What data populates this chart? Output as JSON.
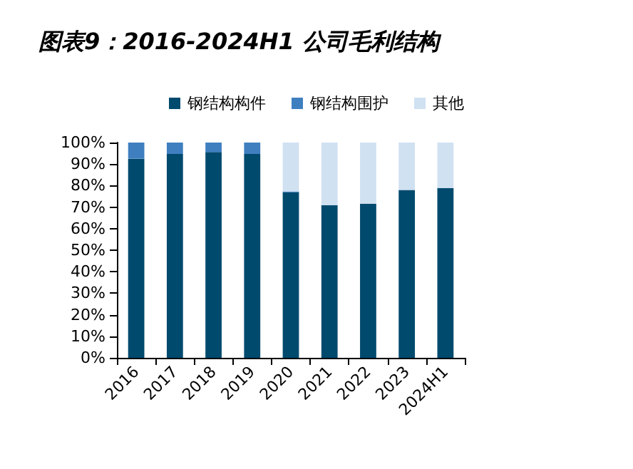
{
  "chart_data": {
    "type": "bar",
    "title": "图表9：2016-2024H1 公司毛利结构",
    "stacked": true,
    "legend": "top",
    "grid": false,
    "categories": [
      "2016",
      "2017",
      "2018",
      "2019",
      "2020",
      "2021",
      "2022",
      "2023",
      "2024H1"
    ],
    "series": [
      {
        "name": "钢结构构件",
        "color": "#004a6e",
        "values": [
          92.5,
          94.7,
          95.6,
          94.7,
          76.9,
          70.9,
          71.6,
          78.0,
          78.9
        ]
      },
      {
        "name": "钢结构围护",
        "color": "#3f7fc0",
        "values": [
          7.5,
          5.3,
          4.4,
          5.3,
          0.4,
          0,
          0,
          0,
          0
        ]
      },
      {
        "name": "其他",
        "color": "#d0e1f2",
        "values": [
          0,
          0,
          0,
          0,
          22.7,
          29.1,
          28.4,
          22.0,
          21.1
        ]
      }
    ],
    "ylim": [
      0,
      100
    ],
    "yticks": [
      {
        "value": 0,
        "label": "0%"
      },
      {
        "value": 10,
        "label": "10%"
      },
      {
        "value": 20,
        "label": "20%"
      },
      {
        "value": 30,
        "label": "30%"
      },
      {
        "value": 40,
        "label": "40%"
      },
      {
        "value": 50,
        "label": "50%"
      },
      {
        "value": 60,
        "label": "60%"
      },
      {
        "value": 70,
        "label": "70%"
      },
      {
        "value": 80,
        "label": "80%"
      },
      {
        "value": 90,
        "label": "90%"
      },
      {
        "value": 100,
        "label": "100%"
      }
    ]
  }
}
